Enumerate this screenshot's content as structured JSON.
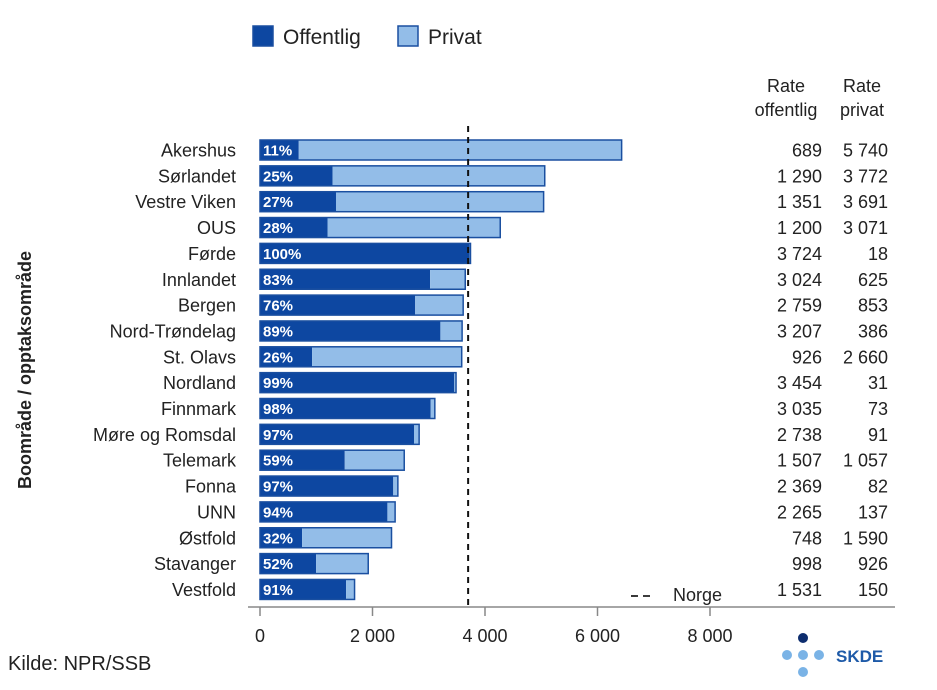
{
  "colors": {
    "offentlig": "#0d47a1",
    "privat": "#93bde8",
    "border": "#1a4fa0",
    "axis": "#888888",
    "logo_dark": "#0d2d6e",
    "logo_light": "#7ab3e6",
    "logo_text": "#1e5aa8"
  },
  "legend": {
    "offentlig": "Offentlig",
    "privat": "Privat"
  },
  "rate_headers": {
    "offentlig_1": "Rate",
    "offentlig_2": "offentlig",
    "privat_1": "Rate",
    "privat_2": "privat"
  },
  "y_axis_title": "Boområde / opptaksområde",
  "source": "Kilde: NPR/SSB",
  "norge_label": "Norge",
  "logo": "SKDE",
  "chart_data": {
    "type": "bar",
    "orientation": "horizontal",
    "stacked": true,
    "title": "",
    "xlabel": "",
    "ylabel": "Boområde / opptaksområde",
    "xlim": [
      0,
      8000
    ],
    "x_ticks": [
      0,
      2000,
      4000,
      6000,
      8000
    ],
    "x_tick_labels": [
      "0",
      "2 000",
      "4 000",
      "6 000",
      "8 000"
    ],
    "reference_line": {
      "label": "Norge",
      "value": 3700,
      "style": "dashed"
    },
    "categories": [
      "Akershus",
      "Sørlandet",
      "Vestre Viken",
      "OUS",
      "Førde",
      "Innlandet",
      "Bergen",
      "Nord-Trøndelag",
      "St. Olavs",
      "Nordland",
      "Finnmark",
      "Møre og Romsdal",
      "Telemark",
      "Fonna",
      "UNN",
      "Østfold",
      "Stavanger",
      "Vestfold"
    ],
    "series": [
      {
        "name": "Offentlig",
        "values": [
          689,
          1290,
          1351,
          1200,
          3724,
          3024,
          2759,
          3207,
          926,
          3454,
          3035,
          2738,
          1507,
          2369,
          2265,
          748,
          998,
          1531
        ]
      },
      {
        "name": "Privat",
        "values": [
          5740,
          3772,
          3691,
          3071,
          18,
          625,
          853,
          386,
          2660,
          31,
          73,
          91,
          1057,
          82,
          137,
          1590,
          926,
          150
        ]
      }
    ],
    "percent_labels": [
      "11%",
      "25%",
      "27%",
      "28%",
      "100%",
      "83%",
      "76%",
      "89%",
      "26%",
      "99%",
      "98%",
      "97%",
      "59%",
      "97%",
      "94%",
      "32%",
      "52%",
      "91%"
    ],
    "rate_offentlig_labels": [
      "689",
      "1 290",
      "1 351",
      "1 200",
      "3 724",
      "3 024",
      "2 759",
      "3 207",
      "926",
      "3 454",
      "3 035",
      "2 738",
      "1 507",
      "2 369",
      "2 265",
      "748",
      "998",
      "1 531"
    ],
    "rate_privat_labels": [
      "5 740",
      "3 772",
      "3 691",
      "3 071",
      "18",
      "625",
      "853",
      "386",
      "2 660",
      "31",
      "73",
      "91",
      "1 057",
      "82",
      "137",
      "1 590",
      "926",
      "150"
    ]
  }
}
